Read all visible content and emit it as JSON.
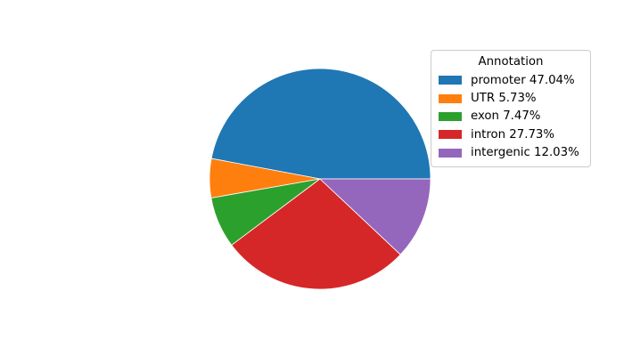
{
  "chart_data": {
    "type": "pie",
    "title": "",
    "legend_title": "Annotation",
    "legend_position": "upper right",
    "start_angle_deg": 0,
    "direction": "counterclockwise",
    "background_color": "#ffffff",
    "legend_border_color": "#cccccc",
    "text_color": "#000000",
    "slices": [
      {
        "label": "promoter",
        "value": 47.04,
        "percent_text": "47.04%",
        "color": "#1f77b4",
        "legend_label": "promoter 47.04%"
      },
      {
        "label": "UTR",
        "value": 5.73,
        "percent_text": "5.73%",
        "color": "#ff7f0e",
        "legend_label": "UTR 5.73%"
      },
      {
        "label": "exon",
        "value": 7.47,
        "percent_text": "7.47%",
        "color": "#2ca02c",
        "legend_label": "exon 7.47%"
      },
      {
        "label": "intron",
        "value": 27.73,
        "percent_text": "27.73%",
        "color": "#d62728",
        "legend_label": "intron 27.73%"
      },
      {
        "label": "intergenic",
        "value": 12.03,
        "percent_text": "12.03%",
        "color": "#9467bd",
        "legend_label": "intergenic 12.03%"
      }
    ]
  }
}
